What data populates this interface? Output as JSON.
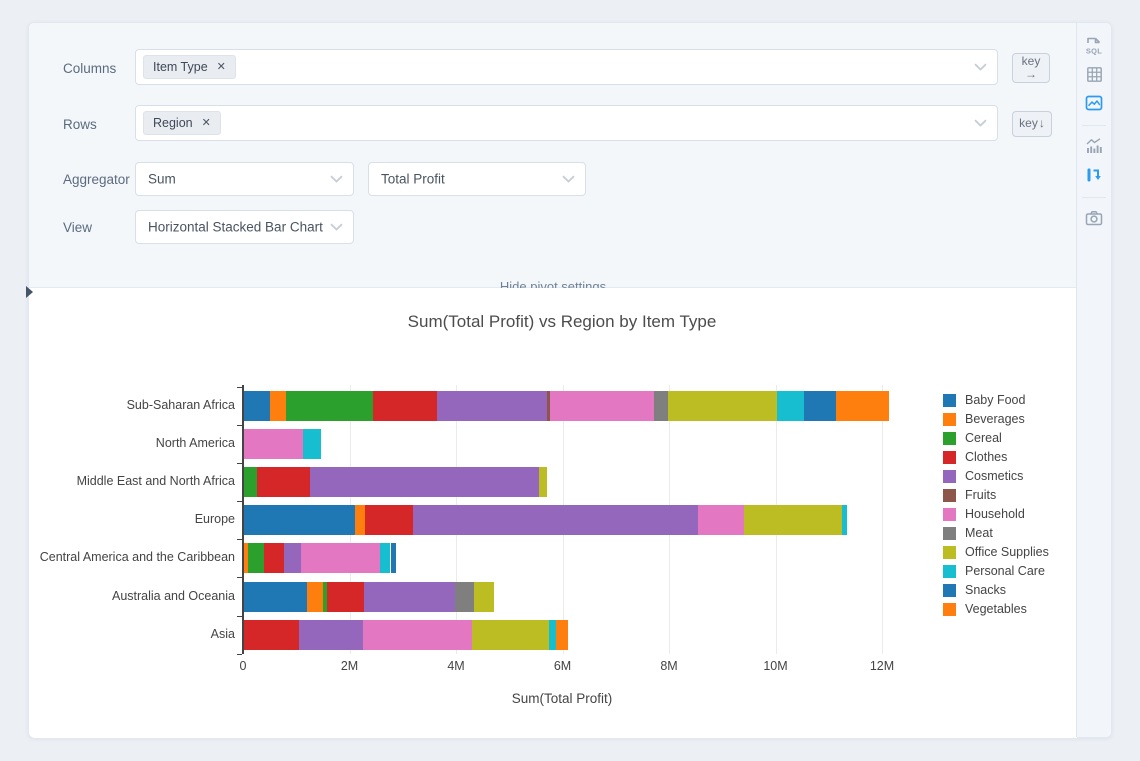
{
  "pivot_settings": {
    "columns_label": "Columns",
    "columns_tags": [
      "Item Type"
    ],
    "rows_label": "Rows",
    "rows_tags": [
      "Region"
    ],
    "aggregator_label": "Aggregator",
    "aggregator_value": "Sum",
    "aggregator_field": "Total Profit",
    "view_label": "View",
    "view_value": "Horizontal Stacked Bar Chart",
    "key_button_label": "key",
    "key_columns_arrow": "→",
    "key_rows_arrow": "↓",
    "hide_link": "Hide pivot settings"
  },
  "sidebar": {
    "sql_label": "SQL",
    "icons": [
      "sql-editor",
      "table-view",
      "chart-view",
      "chart-type",
      "pivot-transpose",
      "camera-export"
    ],
    "active_icons": [
      "chart-view",
      "pivot-transpose"
    ],
    "accent_color": "#2d9bf0",
    "inactive_color": "#98a5b4"
  },
  "chart_data": {
    "type": "bar",
    "orientation": "horizontal",
    "stacked": true,
    "title": "Sum(Total Profit) vs Region by Item Type",
    "xlabel": "Sum(Total Profit)",
    "ylabel": "",
    "values_unit": "millions",
    "xlim": [
      0,
      12.6
    ],
    "xticks": [
      0,
      2,
      4,
      6,
      8,
      10,
      12
    ],
    "xtick_labels": [
      "0",
      "2M",
      "4M",
      "6M",
      "8M",
      "10M",
      "12M"
    ],
    "grid": true,
    "legend_position": "right",
    "categories": [
      "Sub-Saharan Africa",
      "North America",
      "Middle East and North Africa",
      "Europe",
      "Central America and the Caribbean",
      "Australia and Oceania",
      "Asia"
    ],
    "series": [
      {
        "name": "Baby Food",
        "color": "#1f77b4",
        "values": [
          0.5,
          0,
          0,
          2.1,
          0,
          1.2,
          0
        ]
      },
      {
        "name": "Beverages",
        "color": "#ff7f0e",
        "values": [
          0.3,
          0,
          0,
          0.2,
          0.09,
          0.3,
          0
        ]
      },
      {
        "name": "Cereal",
        "color": "#2ca02c",
        "values": [
          1.65,
          0,
          0.26,
          0,
          0.3,
          0.08,
          0
        ]
      },
      {
        "name": "Clothes",
        "color": "#d62728",
        "values": [
          1.2,
          0,
          1.0,
          0.9,
          0.38,
          0.7,
          1.05
        ]
      },
      {
        "name": "Cosmetics",
        "color": "#9467bd",
        "values": [
          2.05,
          0,
          4.3,
          5.35,
          0.31,
          1.7,
          1.2
        ]
      },
      {
        "name": "Fruits",
        "color": "#8c564b",
        "values": [
          0.06,
          0,
          0,
          0,
          0,
          0,
          0
        ]
      },
      {
        "name": "Household",
        "color": "#e377c2",
        "values": [
          1.95,
          1.12,
          0,
          0.85,
          1.5,
          0,
          2.05
        ]
      },
      {
        "name": "Meat",
        "color": "#7f7f7f",
        "values": [
          0.27,
          0,
          0,
          0,
          0,
          0.36,
          0
        ]
      },
      {
        "name": "Office Supplies",
        "color": "#bcbd22",
        "values": [
          2.05,
          0,
          0.15,
          1.85,
          0,
          0.38,
          1.45
        ]
      },
      {
        "name": "Personal Care",
        "color": "#17becf",
        "values": [
          0.5,
          0.34,
          0,
          0.1,
          0.19,
          0,
          0.13
        ]
      },
      {
        "name": "Snacks",
        "color": "#1f77b4",
        "values": [
          0.6,
          0,
          0,
          0,
          0.1,
          0,
          0
        ]
      },
      {
        "name": "Vegetables",
        "color": "#ff7f0e",
        "values": [
          1.0,
          0,
          0,
          0,
          0,
          0,
          0.22
        ]
      }
    ]
  }
}
